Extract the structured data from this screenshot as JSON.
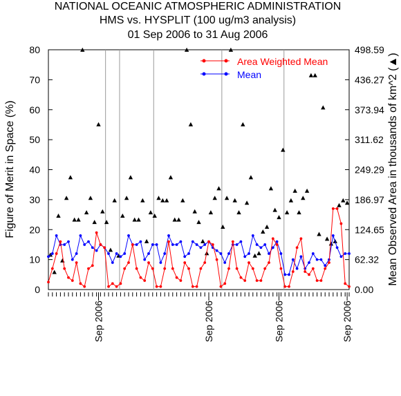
{
  "chart_data": {
    "type": "line",
    "title_lines": [
      "NATIONAL OCEANIC ATMOSPHERIC ADMINISTRATION",
      "HMS vs. HYSPLIT (100 ug/m3 analysis)",
      "01 Sep 2006 to 31 Aug 2006"
    ],
    "ylabel": "Figure of Merit in Space (%)",
    "y2label": "Mean Observed Area in thousands of km^2 (▲)",
    "ylim": [
      0,
      80
    ],
    "y2lim": [
      0,
      498.59
    ],
    "yticks": [
      "0",
      "10",
      "20",
      "30",
      "40",
      "50",
      "60",
      "70",
      "80"
    ],
    "y2ticks": [
      "0.00",
      "62.32",
      "124.65",
      "186.97",
      "249.29",
      "311.62",
      "373.94",
      "436.27",
      "498.59"
    ],
    "xlim": [
      0,
      150
    ],
    "xticks": [
      {
        "x": 25,
        "label": "Sep 2006"
      },
      {
        "x": 80,
        "label": "Sep 2006"
      },
      {
        "x": 115,
        "label": "Sep 2006"
      },
      {
        "x": 149,
        "label": "Sep 2006"
      }
    ],
    "vlines": [
      28.5,
      35.5,
      52.5,
      86.5,
      117.5
    ],
    "legend_position": "top-right",
    "colors": {
      "awm": "#ff0000",
      "mean": "#0000ff",
      "area": "#000000",
      "vline": "#999999"
    },
    "series": [
      {
        "name": "Area Weighted Mean",
        "x": [
          0,
          2,
          4,
          6,
          8,
          10,
          12,
          14,
          16,
          18,
          20,
          22,
          24,
          26,
          28,
          30,
          32,
          34,
          36,
          38,
          40,
          42,
          44,
          46,
          48,
          50,
          52,
          54,
          56,
          58,
          60,
          62,
          64,
          66,
          68,
          70,
          72,
          74,
          76,
          78,
          80,
          82,
          84,
          86,
          88,
          90,
          92,
          94,
          96,
          98,
          100,
          102,
          104,
          106,
          108,
          110,
          112,
          114,
          116,
          118,
          120,
          122,
          124,
          126,
          128,
          130,
          132,
          134,
          136,
          138,
          140,
          142,
          144,
          146,
          148,
          150
        ],
        "y": [
          2.5,
          7,
          12,
          16,
          7,
          4,
          3,
          9,
          2,
          1,
          7,
          8,
          19,
          15,
          14,
          1,
          2,
          1,
          2,
          7,
          9,
          15,
          7,
          4,
          3,
          9,
          7,
          1,
          1,
          7,
          16,
          7,
          4,
          3,
          9,
          7,
          1,
          1,
          7,
          9,
          16,
          15,
          10,
          1,
          2,
          7,
          16,
          7,
          4,
          3,
          9,
          7,
          3,
          3,
          7,
          9,
          17,
          15,
          7,
          1,
          1,
          6,
          14,
          17,
          6,
          5,
          7,
          3,
          3,
          7,
          9,
          27,
          27,
          22,
          2,
          1
        ]
      },
      {
        "name": "Mean",
        "x": [
          0,
          2,
          4,
          6,
          8,
          10,
          12,
          14,
          16,
          18,
          20,
          22,
          24,
          26,
          28,
          30,
          32,
          34,
          36,
          38,
          40,
          42,
          44,
          46,
          48,
          50,
          52,
          54,
          56,
          58,
          60,
          62,
          64,
          66,
          68,
          70,
          72,
          74,
          76,
          78,
          80,
          82,
          84,
          86,
          88,
          90,
          92,
          94,
          96,
          98,
          100,
          102,
          104,
          106,
          108,
          110,
          112,
          114,
          116,
          118,
          120,
          122,
          124,
          126,
          128,
          130,
          132,
          134,
          136,
          138,
          140,
          142,
          144,
          146,
          148,
          150
        ],
        "y": [
          11,
          12,
          18,
          15,
          15,
          16,
          10,
          12,
          18,
          15,
          16,
          14,
          13,
          15,
          14,
          12,
          9,
          12,
          11,
          12,
          18,
          15,
          15,
          16,
          10,
          12,
          15,
          15,
          9,
          12,
          18,
          15,
          15,
          16,
          11,
          12,
          16,
          15,
          14,
          15,
          16,
          14,
          13,
          12,
          9,
          12,
          15,
          15,
          16,
          11,
          12,
          18,
          15,
          14,
          15,
          12,
          14,
          16,
          12,
          5,
          5,
          10,
          7,
          11,
          7,
          9,
          12,
          10,
          10,
          8,
          10,
          18,
          14,
          11,
          12,
          12
        ]
      },
      {
        "name": "Mean Observed Area",
        "marker": "triangle",
        "x": [
          1,
          3,
          5,
          7,
          9,
          11,
          13,
          15,
          17,
          19,
          21,
          23,
          25,
          27,
          29,
          31,
          33,
          35,
          37,
          39,
          41,
          43,
          45,
          47,
          49,
          51,
          53,
          55,
          57,
          59,
          61,
          63,
          65,
          67,
          69,
          71,
          73,
          75,
          77,
          79,
          81,
          83,
          85,
          87,
          89,
          91,
          93,
          95,
          97,
          99,
          101,
          103,
          105,
          107,
          109,
          111,
          113,
          115,
          117,
          119,
          121,
          123,
          125,
          127,
          129,
          131,
          133,
          135,
          137,
          139,
          141,
          143,
          145,
          147,
          149
        ],
        "y": [
          72,
          36,
          153,
          60,
          190,
          233,
          145,
          145,
          498,
          160,
          190,
          140,
          343,
          162,
          140,
          82,
          185,
          70,
          153,
          190,
          233,
          145,
          145,
          185,
          100,
          160,
          153,
          190,
          185,
          185,
          233,
          145,
          145,
          185,
          498,
          343,
          162,
          140,
          100,
          75,
          160,
          190,
          210,
          130,
          190,
          498,
          185,
          160,
          343,
          180,
          233,
          70,
          75,
          120,
          130,
          210,
          165,
          150,
          290,
          160,
          185,
          205,
          160,
          190,
          205,
          445,
          445,
          115,
          378,
          105,
          95,
          100,
          175,
          185,
          180
        ]
      }
    ]
  }
}
